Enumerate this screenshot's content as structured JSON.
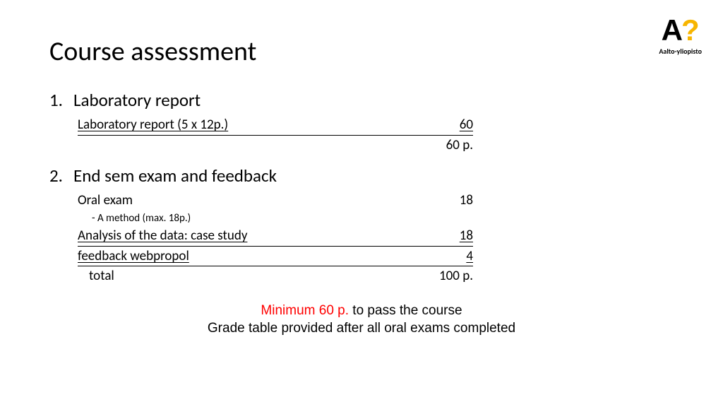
{
  "colors": {
    "background": "#ffffff",
    "text": "#000000",
    "accent_yellow": "#f7b500",
    "warning_red": "#ff0000"
  },
  "fonts": {
    "title_size_pt": 38,
    "section_size_pt": 25,
    "row_size_pt": 19,
    "subnote_size_pt": 15,
    "footer_size_pt": 19,
    "logo_text_size_pt": 10
  },
  "logo": {
    "letter": "A",
    "mark": "?",
    "mark_color": "#f7b500",
    "text": "Aalto-yliopisto"
  },
  "title": "Course assessment",
  "sections": [
    {
      "number": "1.",
      "heading": "Laboratory report",
      "rows": [
        {
          "label": "Laboratory report (5 x 12p.)",
          "value": "60",
          "underline": true
        }
      ],
      "subtotal": "60 p."
    },
    {
      "number": "2.",
      "heading": "End sem exam and feedback",
      "rows": [
        {
          "label": "Oral exam",
          "value": "18",
          "underline": false,
          "subnote": "- A method (max. 18p.)"
        },
        {
          "label": "Analysis of the data: case study",
          "value": "18",
          "underline": true
        },
        {
          "label": "feedback webpropol",
          "value": "4",
          "underline": true
        }
      ],
      "total": {
        "label": "total",
        "value": "100 p."
      }
    }
  ],
  "footer": {
    "minimum_prefix": "Minimum 60 p.",
    "minimum_suffix": " to pass the course",
    "line2": "Grade table provided after all oral exams completed"
  }
}
